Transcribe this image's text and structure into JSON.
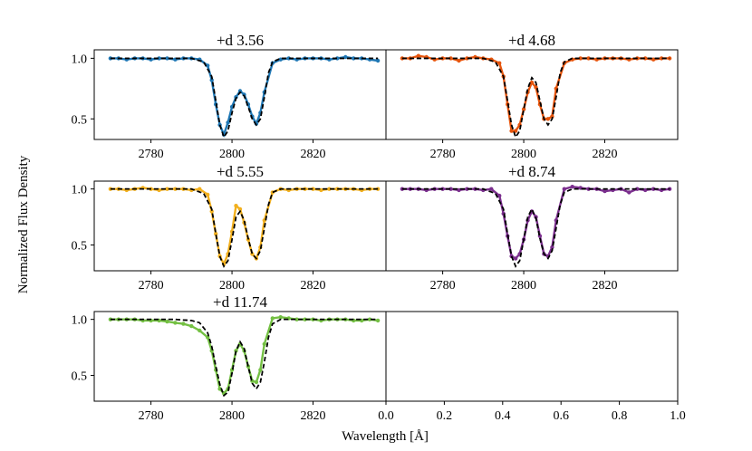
{
  "figure": {
    "ylabel": "Normalized Flux Density",
    "xlabel": "Wavelength [Å]"
  },
  "chart_data": [
    {
      "type": "line",
      "title": "+d 3.56",
      "xlim": [
        2766,
        2838
      ],
      "ylim": [
        0.33,
        1.07
      ],
      "xticks": [
        2780,
        2800,
        2820
      ],
      "yticks": [
        1.0,
        0.5
      ],
      "series": [
        {
          "color": "#1f77b4",
          "style": "solid-with-markers",
          "values": "data",
          "x": [
            2770,
            2772,
            2774,
            2776,
            2778,
            2780,
            2782,
            2784,
            2786,
            2788,
            2790,
            2792,
            2794,
            2795,
            2796,
            2797,
            2798,
            2799,
            2800,
            2801,
            2802,
            2803,
            2804,
            2805,
            2806,
            2807,
            2808,
            2810,
            2812,
            2814,
            2816,
            2818,
            2820,
            2822,
            2824,
            2826,
            2828,
            2830,
            2832,
            2834,
            2836
          ],
          "y": [
            1.0,
            1.0,
            0.99,
            1.0,
            1.0,
            0.99,
            1.0,
            1.0,
            0.99,
            1.0,
            1.0,
            0.99,
            0.94,
            0.82,
            0.62,
            0.45,
            0.37,
            0.47,
            0.6,
            0.68,
            0.73,
            0.7,
            0.62,
            0.52,
            0.46,
            0.55,
            0.72,
            0.96,
            0.99,
            1.0,
            0.99,
            1.0,
            1.0,
            1.0,
            0.99,
            1.0,
            1.01,
            1.0,
            1.0,
            0.99,
            0.98
          ]
        },
        {
          "color": "#000000",
          "style": "dashed",
          "values": "model",
          "x": [
            2770,
            2780,
            2790,
            2793,
            2795,
            2796,
            2797,
            2798,
            2799,
            2800,
            2801,
            2802,
            2803,
            2804,
            2805,
            2806,
            2807,
            2808,
            2809,
            2810,
            2812,
            2820,
            2836
          ],
          "y": [
            1.0,
            1.0,
            1.0,
            0.97,
            0.85,
            0.65,
            0.45,
            0.35,
            0.4,
            0.55,
            0.67,
            0.72,
            0.69,
            0.6,
            0.5,
            0.45,
            0.5,
            0.68,
            0.88,
            0.97,
            1.0,
            1.0,
            1.0
          ]
        }
      ]
    },
    {
      "type": "line",
      "title": "+d 4.68",
      "xlim": [
        2766,
        2838
      ],
      "ylim": [
        0.33,
        1.07
      ],
      "xticks": [
        2780,
        2800,
        2820
      ],
      "yticks": [],
      "series": [
        {
          "color": "#e6550d",
          "style": "solid-with-markers",
          "values": "data",
          "x": [
            2770,
            2772,
            2774,
            2776,
            2778,
            2780,
            2782,
            2784,
            2786,
            2788,
            2790,
            2792,
            2794,
            2795,
            2796,
            2797,
            2798,
            2799,
            2800,
            2801,
            2802,
            2803,
            2804,
            2805,
            2806,
            2807,
            2808,
            2810,
            2812,
            2814,
            2816,
            2818,
            2820,
            2822,
            2824,
            2826,
            2828,
            2830,
            2832,
            2834,
            2836
          ],
          "y": [
            1.0,
            1.0,
            1.02,
            1.01,
            0.99,
            1.0,
            1.0,
            0.98,
            1.0,
            1.01,
            1.0,
            0.99,
            0.96,
            0.85,
            0.62,
            0.4,
            0.4,
            0.45,
            0.58,
            0.72,
            0.8,
            0.76,
            0.62,
            0.5,
            0.5,
            0.52,
            0.75,
            0.96,
            0.99,
            1.0,
            1.0,
            0.99,
            1.0,
            1.0,
            1.0,
            0.99,
            1.0,
            1.0,
            0.99,
            1.0,
            1.0
          ]
        },
        {
          "color": "#000000",
          "style": "dashed",
          "values": "model",
          "x": [
            2770,
            2780,
            2790,
            2793,
            2795,
            2796,
            2797,
            2798,
            2799,
            2800,
            2801,
            2802,
            2803,
            2804,
            2805,
            2806,
            2807,
            2808,
            2809,
            2810,
            2812,
            2820,
            2836
          ],
          "y": [
            1.0,
            1.0,
            1.0,
            0.97,
            0.85,
            0.65,
            0.45,
            0.35,
            0.4,
            0.58,
            0.75,
            0.84,
            0.8,
            0.65,
            0.5,
            0.45,
            0.5,
            0.68,
            0.88,
            0.97,
            1.0,
            1.0,
            1.0
          ]
        }
      ]
    },
    {
      "type": "line",
      "title": "+d 5.55",
      "xlim": [
        2766,
        2838
      ],
      "ylim": [
        0.27,
        1.07
      ],
      "xticks": [
        2780,
        2800,
        2820
      ],
      "yticks": [
        1.0,
        0.5
      ],
      "series": [
        {
          "color": "#f2b01e",
          "style": "solid-with-markers",
          "values": "data",
          "x": [
            2770,
            2772,
            2774,
            2776,
            2778,
            2780,
            2782,
            2784,
            2786,
            2788,
            2790,
            2792,
            2794,
            2795,
            2796,
            2797,
            2798,
            2799,
            2800,
            2801,
            2802,
            2803,
            2804,
            2805,
            2806,
            2807,
            2808,
            2810,
            2812,
            2814,
            2816,
            2818,
            2820,
            2822,
            2824,
            2826,
            2828,
            2830,
            2832,
            2834,
            2836
          ],
          "y": [
            1.0,
            1.0,
            0.99,
            1.0,
            1.01,
            1.0,
            0.99,
            1.0,
            1.0,
            1.0,
            0.99,
            1.0,
            0.95,
            0.8,
            0.6,
            0.4,
            0.33,
            0.42,
            0.62,
            0.85,
            0.82,
            0.7,
            0.55,
            0.42,
            0.38,
            0.48,
            0.72,
            0.97,
            1.0,
            0.99,
            1.0,
            1.0,
            1.0,
            0.99,
            1.0,
            1.0,
            1.0,
            1.0,
            0.99,
            1.0,
            1.0
          ]
        },
        {
          "color": "#000000",
          "style": "dashed",
          "values": "model",
          "x": [
            2770,
            2780,
            2790,
            2793,
            2795,
            2796,
            2797,
            2798,
            2799,
            2800,
            2801,
            2802,
            2803,
            2804,
            2805,
            2806,
            2807,
            2808,
            2809,
            2810,
            2812,
            2820,
            2836
          ],
          "y": [
            1.0,
            1.0,
            1.0,
            0.96,
            0.82,
            0.6,
            0.4,
            0.31,
            0.36,
            0.55,
            0.75,
            0.8,
            0.72,
            0.56,
            0.42,
            0.38,
            0.45,
            0.65,
            0.86,
            0.97,
            1.0,
            1.0,
            1.0
          ]
        }
      ]
    },
    {
      "type": "line",
      "title": "+d 8.74",
      "xlim": [
        2766,
        2838
      ],
      "ylim": [
        0.27,
        1.07
      ],
      "xticks": [
        2780,
        2800,
        2820
      ],
      "yticks": [],
      "series": [
        {
          "color": "#7b2f8e",
          "style": "solid-with-markers",
          "values": "data",
          "x": [
            2770,
            2772,
            2774,
            2776,
            2778,
            2780,
            2782,
            2784,
            2786,
            2788,
            2790,
            2792,
            2794,
            2795,
            2796,
            2797,
            2798,
            2799,
            2800,
            2801,
            2802,
            2803,
            2804,
            2805,
            2806,
            2807,
            2808,
            2810,
            2812,
            2814,
            2816,
            2818,
            2820,
            2822,
            2824,
            2826,
            2828,
            2830,
            2832,
            2834,
            2836
          ],
          "y": [
            1.0,
            1.0,
            1.0,
            0.99,
            1.0,
            1.0,
            1.0,
            0.99,
            1.0,
            1.0,
            0.99,
            1.0,
            0.94,
            0.78,
            0.58,
            0.4,
            0.38,
            0.42,
            0.55,
            0.72,
            0.8,
            0.75,
            0.58,
            0.42,
            0.4,
            0.48,
            0.72,
            1.0,
            1.02,
            1.01,
            1.0,
            1.0,
            0.98,
            0.99,
            1.0,
            0.97,
            1.0,
            0.99,
            1.0,
            0.99,
            1.0
          ]
        },
        {
          "color": "#000000",
          "style": "dashed",
          "values": "model",
          "x": [
            2770,
            2780,
            2790,
            2793,
            2795,
            2796,
            2797,
            2798,
            2799,
            2800,
            2801,
            2802,
            2803,
            2804,
            2805,
            2806,
            2807,
            2808,
            2809,
            2810,
            2812,
            2820,
            2836
          ],
          "y": [
            1.0,
            1.0,
            1.0,
            0.96,
            0.82,
            0.6,
            0.4,
            0.31,
            0.36,
            0.55,
            0.75,
            0.82,
            0.74,
            0.56,
            0.42,
            0.38,
            0.45,
            0.65,
            0.86,
            0.97,
            1.0,
            1.0,
            1.0
          ]
        }
      ]
    },
    {
      "type": "line",
      "title": "+d 11.74",
      "xlim": [
        2766,
        2838
      ],
      "ylim": [
        0.27,
        1.07
      ],
      "xticks": [
        2780,
        2800,
        2820
      ],
      "yticks": [
        1.0,
        0.5
      ],
      "series": [
        {
          "color": "#74c043",
          "style": "solid-with-markers",
          "values": "data",
          "x": [
            2770,
            2772,
            2774,
            2776,
            2778,
            2780,
            2782,
            2784,
            2786,
            2788,
            2790,
            2792,
            2794,
            2795,
            2796,
            2797,
            2798,
            2799,
            2800,
            2801,
            2802,
            2803,
            2804,
            2805,
            2806,
            2807,
            2808,
            2810,
            2812,
            2814,
            2816,
            2818,
            2820,
            2822,
            2824,
            2826,
            2828,
            2830,
            2832,
            2834,
            2836
          ],
          "y": [
            1.0,
            1.0,
            1.0,
            1.0,
            0.99,
            0.99,
            0.99,
            0.98,
            0.97,
            0.96,
            0.94,
            0.9,
            0.84,
            0.72,
            0.55,
            0.38,
            0.34,
            0.38,
            0.55,
            0.72,
            0.78,
            0.72,
            0.58,
            0.45,
            0.44,
            0.55,
            0.78,
            1.01,
            1.02,
            1.01,
            1.0,
            1.0,
            1.0,
            0.99,
            1.0,
            1.0,
            1.0,
            0.99,
            0.99,
            1.0,
            0.99
          ]
        },
        {
          "color": "#000000",
          "style": "dashed",
          "values": "model",
          "x": [
            2770,
            2780,
            2786,
            2790,
            2792,
            2794,
            2795,
            2796,
            2797,
            2798,
            2799,
            2800,
            2801,
            2802,
            2803,
            2804,
            2805,
            2806,
            2807,
            2808,
            2809,
            2810,
            2812,
            2820,
            2836
          ],
          "y": [
            1.0,
            1.0,
            1.0,
            0.99,
            0.97,
            0.88,
            0.76,
            0.58,
            0.42,
            0.32,
            0.35,
            0.52,
            0.72,
            0.8,
            0.74,
            0.58,
            0.43,
            0.38,
            0.44,
            0.62,
            0.84,
            0.96,
            1.0,
            1.0,
            1.0
          ]
        }
      ]
    },
    {
      "type": "line",
      "title": "",
      "xlim": [
        0,
        1
      ],
      "ylim": [
        0,
        1
      ],
      "xticks": [
        0.0,
        0.2,
        0.4,
        0.6,
        0.8,
        1.0
      ],
      "yticks": [],
      "series": []
    }
  ]
}
